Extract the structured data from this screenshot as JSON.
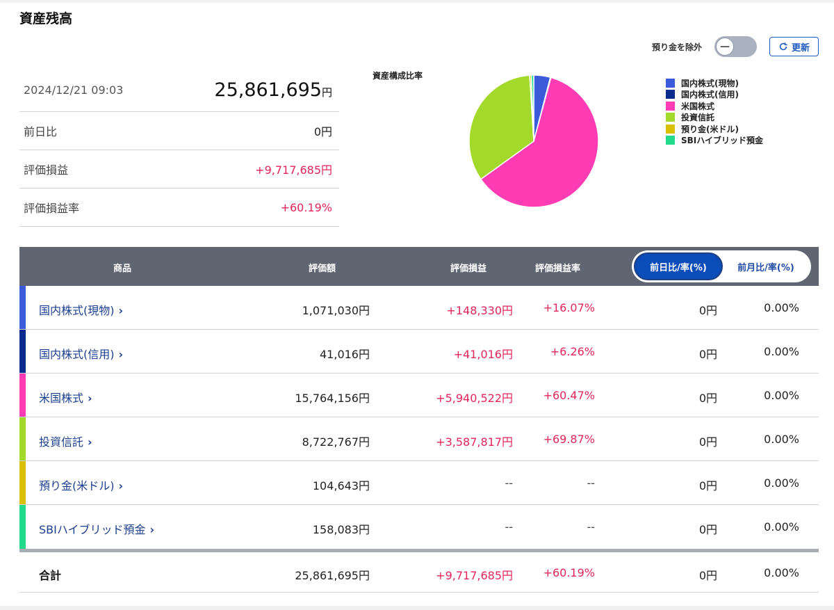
{
  "page_title": "資産残高",
  "controls": {
    "exclude_label": "預り金を除外",
    "toggle_knob": "—",
    "refresh_label": "更新"
  },
  "summary": {
    "datetime": "2024/12/21 09:03",
    "total_value": "25,861,695",
    "total_unit": "円",
    "rows": [
      {
        "label": "前日比",
        "value": "0円"
      },
      {
        "label": "評価損益",
        "value": "+9,717,685円"
      },
      {
        "label": "評価損益率",
        "value": "+60.19%"
      }
    ]
  },
  "chart_data": {
    "type": "pie",
    "title": "資産構成比率",
    "legend_position": "right",
    "series": [
      {
        "name": "国内株式(現物)",
        "value": 1071030,
        "color": "#3b5bdb"
      },
      {
        "name": "国内株式(信用)",
        "value": 41016,
        "color": "#0a2a8c"
      },
      {
        "name": "米国株式",
        "value": 15764156,
        "color": "#ff3cb4"
      },
      {
        "name": "投資信託",
        "value": 8722767,
        "color": "#a3d92a"
      },
      {
        "name": "預り金(米ドル)",
        "value": 104643,
        "color": "#d9c000"
      },
      {
        "name": "SBIハイブリッド預金",
        "value": 158083,
        "color": "#22d98c"
      }
    ]
  },
  "table": {
    "headers": {
      "name": "商品",
      "value": "評価額",
      "pl": "評価損益",
      "rate": "評価損益率"
    },
    "segment": {
      "daily": "前日比/率(%)",
      "monthly": "前月比/率(%)"
    },
    "rows": [
      {
        "name": "国内株式(現物)",
        "value": "1,071,030円",
        "pl": "+148,330円",
        "rate": "+16.07%",
        "diff": "0円",
        "diff_rate": "0.00%",
        "color": "#3b5bdb"
      },
      {
        "name": "国内株式(信用)",
        "value": "41,016円",
        "pl": "+41,016円",
        "rate": "+6.26%",
        "diff": "0円",
        "diff_rate": "0.00%",
        "color": "#0a2a8c"
      },
      {
        "name": "米国株式",
        "value": "15,764,156円",
        "pl": "+5,940,522円",
        "rate": "+60.47%",
        "diff": "0円",
        "diff_rate": "0.00%",
        "color": "#ff3cb4"
      },
      {
        "name": "投資信託",
        "value": "8,722,767円",
        "pl": "+3,587,817円",
        "rate": "+69.87%",
        "diff": "0円",
        "diff_rate": "0.00%",
        "color": "#a3d92a"
      },
      {
        "name": "預り金(米ドル)",
        "value": "104,643円",
        "pl": "--",
        "rate": "--",
        "diff": "0円",
        "diff_rate": "0.00%",
        "color": "#d9c000"
      },
      {
        "name": "SBIハイブリッド預金",
        "value": "158,083円",
        "pl": "--",
        "rate": "--",
        "diff": "0円",
        "diff_rate": "0.00%",
        "color": "#22d98c"
      }
    ],
    "total": {
      "name": "合計",
      "value": "25,861,695円",
      "pl": "+9,717,685円",
      "rate": "+60.19%",
      "diff": "0円",
      "diff_rate": "0.00%"
    }
  }
}
